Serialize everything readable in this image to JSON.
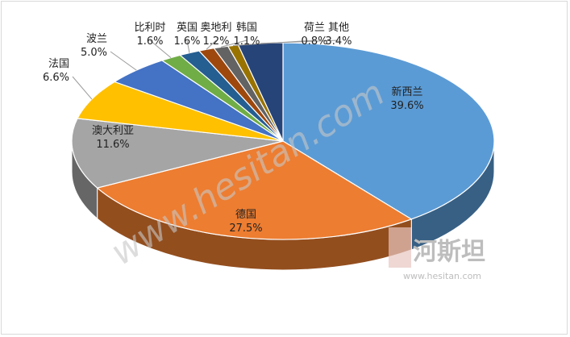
{
  "chart_data": {
    "type": "pie",
    "title": "",
    "categories": [
      "新西兰",
      "德国",
      "澳大利亚",
      "法国",
      "波兰",
      "比利时",
      "英国",
      "奥地利",
      "韩国",
      "荷兰",
      "其他"
    ],
    "values": [
      39.6,
      27.5,
      11.6,
      6.6,
      5.0,
      1.6,
      1.6,
      1.2,
      1.1,
      0.8,
      3.4
    ],
    "value_labels": [
      "39.6%",
      "27.5%",
      "11.6%",
      "6.6%",
      "5.0%",
      "1.6%",
      "1.6%",
      "1.2%",
      "1.1%",
      "0.8%",
      "3.4%"
    ],
    "colors": [
      "#5b9bd5",
      "#ed7d31",
      "#a5a5a5",
      "#ffc000",
      "#4472c4",
      "#70ad47",
      "#255e91",
      "#9e480e",
      "#636363",
      "#997300",
      "#264478"
    ],
    "style": "3d",
    "legend": "none"
  },
  "watermark": {
    "diagonal_text": "www.hesitan.com",
    "logo_text": "河斯坦",
    "logo_url_text": "www.hesitan.com"
  }
}
